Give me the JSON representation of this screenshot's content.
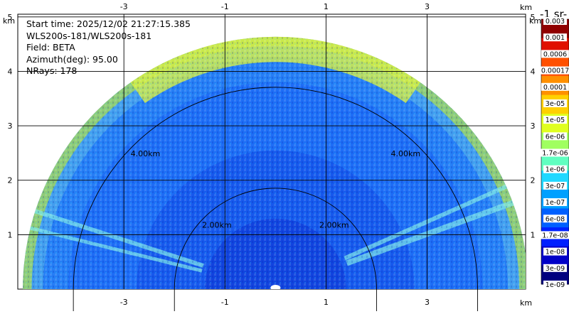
{
  "chart_data": {
    "type": "heatmap",
    "subtype": "ppi-radar-sector",
    "info_lines": [
      "Start time: 2025/12/02 21:27:15.385",
      "WLS200s-181/WLS200s-181",
      "Field: BETA",
      "Azimuth(deg): 95.00",
      "NRays: 178"
    ],
    "x_ticks": [
      {
        "value": -3,
        "label": "-3"
      },
      {
        "value": -1,
        "label": "-1"
      },
      {
        "value": 1,
        "label": "1"
      },
      {
        "value": 3,
        "label": "3"
      }
    ],
    "y_ticks": [
      {
        "value": 1,
        "label": "1"
      },
      {
        "value": 2,
        "label": "2"
      },
      {
        "value": 3,
        "label": "3"
      },
      {
        "value": 4,
        "label": "4"
      },
      {
        "value": 5,
        "label": "5"
      }
    ],
    "unit_label": "km",
    "xlim": [
      -5.1,
      4.95
    ],
    "ylim": [
      0,
      5.05
    ],
    "sector": {
      "max_range_km": 5.0,
      "start_angle_deg": 0,
      "end_angle_deg": 180
    },
    "range_rings": [
      {
        "radius_km": 2.0,
        "label": "2.00km"
      },
      {
        "radius_km": 4.0,
        "label": "4.00km"
      }
    ],
    "colorbar": {
      "title": "-1 sr-",
      "colors": [
        "#00007f",
        "#0000c8",
        "#0020ff",
        "#0060ff",
        "#00a0ff",
        "#20d8ff",
        "#60ffc0",
        "#a0ff60",
        "#e0ff20",
        "#ffd000",
        "#ff9000",
        "#ff5000",
        "#e01000",
        "#900000"
      ],
      "labels": [
        "0.003",
        "0.001",
        "0.0006",
        "0.00017",
        "0.0001",
        "3e-05",
        "1e-05",
        "6e-06",
        "1.7e-06",
        "1e-06",
        "3e-07",
        "1e-07",
        "6e-08",
        "1.7e-08",
        "1e-08",
        "3e-09",
        "1e-09"
      ]
    }
  }
}
